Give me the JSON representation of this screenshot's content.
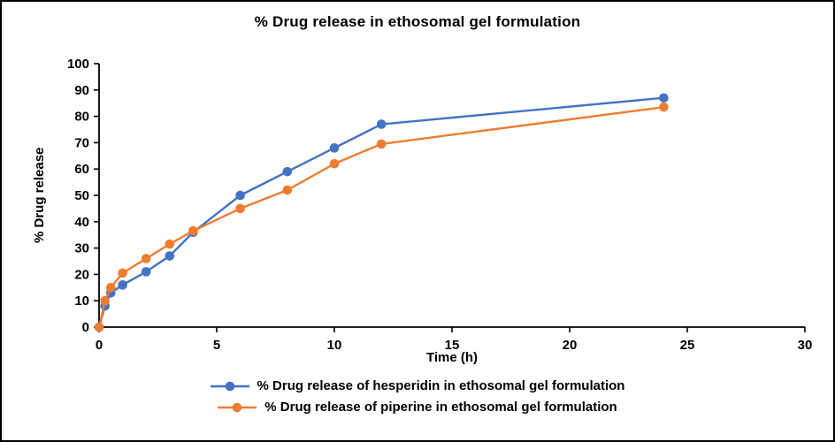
{
  "figure": {
    "title": "% Drug release in ethosomal gel formulation",
    "x_axis_label": "Time (h)",
    "y_axis_label": "% Drug release"
  },
  "colors": {
    "hesperidin": "#4472C4",
    "piperine": "#ED7D31",
    "axis": "#000000"
  },
  "chart_data": {
    "type": "line",
    "title": "% Drug release in ethosomal gel formulation",
    "xlabel": "Time (h)",
    "ylabel": "% Drug release",
    "xlim": [
      0,
      30
    ],
    "ylim": [
      0,
      100
    ],
    "x_ticks": [
      0,
      5,
      10,
      15,
      20,
      25,
      30
    ],
    "y_ticks": [
      0,
      10,
      20,
      30,
      40,
      50,
      60,
      70,
      80,
      90,
      100
    ],
    "grid": false,
    "legend_position": "bottom",
    "x": [
      0,
      0.25,
      0.5,
      1,
      2,
      3,
      4,
      6,
      8,
      10,
      12,
      24
    ],
    "series": [
      {
        "name": "% Drug release of hesperidin in ethosomal gel formulation",
        "color": "#4472C4",
        "values": [
          0,
          8,
          13,
          16,
          21,
          27,
          36,
          50,
          59,
          68,
          77,
          87
        ]
      },
      {
        "name": "% Drug release of piperine in ethosomal gel formulation",
        "color": "#ED7D31",
        "values": [
          0,
          10,
          15,
          20.5,
          26,
          31.5,
          36.5,
          45,
          52,
          62,
          69.5,
          83.5
        ]
      }
    ]
  }
}
